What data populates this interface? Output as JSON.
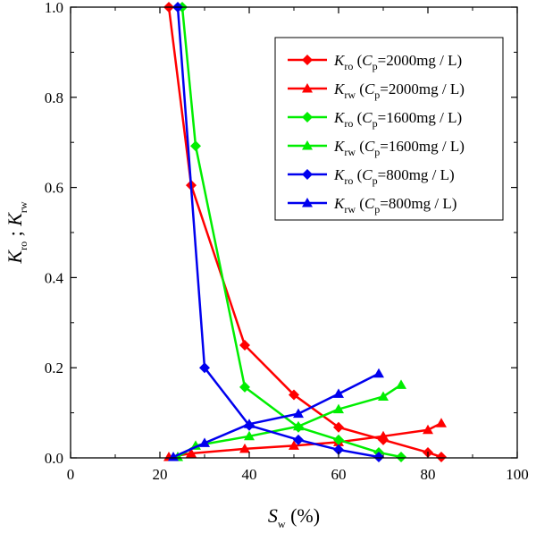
{
  "chart_data": {
    "type": "line",
    "title": "",
    "xlabel": {
      "main": "S",
      "sub": "w",
      "suffix": " (%)"
    },
    "ylabel": {
      "parts": [
        {
          "main": "K",
          "sub": "ro"
        },
        {
          "sep": " ; "
        },
        {
          "main": "K",
          "sub": "rw"
        }
      ]
    },
    "xlim": [
      0,
      100
    ],
    "ylim": [
      0,
      1.0
    ],
    "xticks": [
      0,
      20,
      40,
      60,
      80,
      100
    ],
    "yticks": [
      0.0,
      0.2,
      0.4,
      0.6,
      0.8,
      1.0
    ],
    "xtick_labels": [
      "0",
      "20",
      "40",
      "60",
      "80",
      "100"
    ],
    "ytick_labels": [
      "0.0",
      "0.2",
      "0.4",
      "0.6",
      "0.8",
      "1.0"
    ],
    "grid": false,
    "legend_position": "top-right",
    "series": [
      {
        "name": "Kro (Cp=2000mg / L)",
        "legend": {
          "k": "K",
          "ksub": "ro",
          "open": " (",
          "c": "C",
          "csub": "p",
          "rest": "=2000mg / L)"
        },
        "color": "#ff0000",
        "marker": "diamond",
        "x": [
          22,
          27,
          39,
          50,
          60,
          70,
          80,
          83
        ],
        "y": [
          1.0,
          0.605,
          0.25,
          0.14,
          0.068,
          0.04,
          0.012,
          0.002
        ]
      },
      {
        "name": "Krw (Cp=2000mg / L)",
        "legend": {
          "k": "K",
          "ksub": "rw",
          "open": " (",
          "c": "C",
          "csub": "p",
          "rest": "=2000mg / L)"
        },
        "color": "#ff0000",
        "marker": "triangle",
        "x": [
          22,
          27,
          39,
          50,
          60,
          70,
          80,
          83
        ],
        "y": [
          0.002,
          0.01,
          0.02,
          0.027,
          0.035,
          0.048,
          0.062,
          0.077
        ]
      },
      {
        "name": "Kro (Cp=1600mg / L)",
        "legend": {
          "k": "K",
          "ksub": "ro",
          "open": " (",
          "c": "C",
          "csub": "p",
          "rest": "=1600mg / L)"
        },
        "color": "#00ee00",
        "marker": "diamond",
        "x": [
          25,
          28,
          39,
          51,
          60,
          69,
          74
        ],
        "y": [
          1.0,
          0.692,
          0.157,
          0.068,
          0.04,
          0.012,
          0.002
        ]
      },
      {
        "name": "Krw (Cp=1600mg / L)",
        "legend": {
          "k": "K",
          "ksub": "rw",
          "open": " (",
          "c": "C",
          "csub": "p",
          "rest": "=1600mg / L)"
        },
        "color": "#00ee00",
        "marker": "triangle",
        "x": [
          24,
          28,
          40,
          51,
          60,
          70,
          74
        ],
        "y": [
          0.002,
          0.027,
          0.048,
          0.07,
          0.108,
          0.136,
          0.162
        ]
      },
      {
        "name": "Kro (Cp=800mg / L)",
        "legend": {
          "k": "K",
          "ksub": "ro",
          "open": " (",
          "c": "C",
          "csub": "p",
          "rest": "=800mg / L)"
        },
        "color": "#0000ee",
        "marker": "diamond",
        "x": [
          24,
          30,
          40,
          51,
          60,
          69
        ],
        "y": [
          1.0,
          0.2,
          0.072,
          0.04,
          0.018,
          0.002
        ]
      },
      {
        "name": "Krw (Cp=800mg / L)",
        "legend": {
          "k": "K",
          "ksub": "rw",
          "open": " (",
          "c": "C",
          "csub": "p",
          "rest": "=800mg / L)"
        },
        "color": "#0000ee",
        "marker": "triangle",
        "x": [
          23,
          30,
          40,
          51,
          60,
          69
        ],
        "y": [
          0.002,
          0.033,
          0.075,
          0.098,
          0.142,
          0.187
        ]
      }
    ]
  }
}
